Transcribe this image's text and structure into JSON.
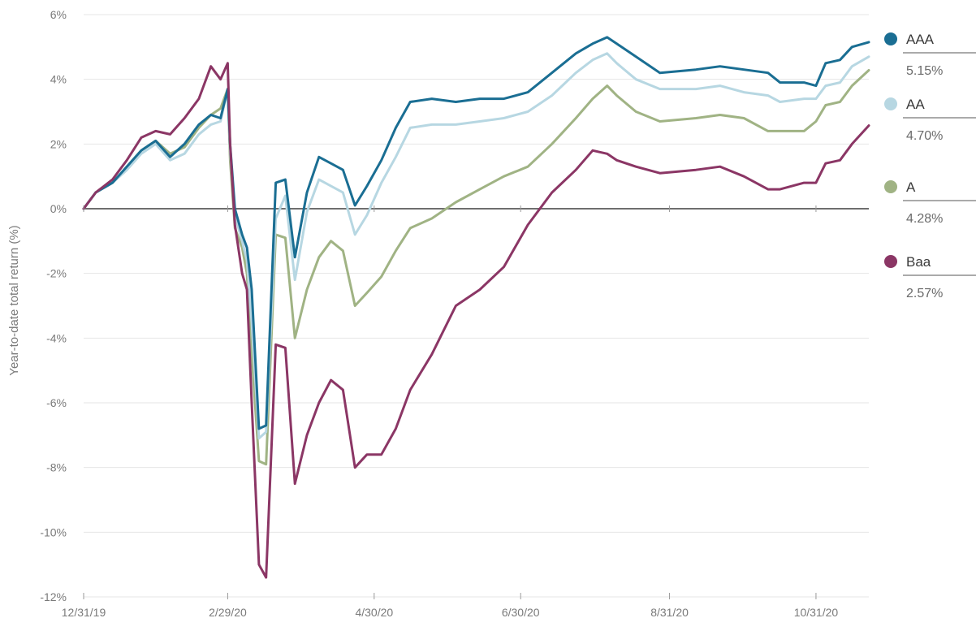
{
  "chart_data": {
    "type": "line",
    "ylabel": "Year-to-date total return (%)",
    "ylim": [
      -12,
      6
    ],
    "grid": true,
    "legend_position": "right",
    "y_ticks": [
      6,
      4,
      2,
      0,
      -2,
      -4,
      -6,
      -8,
      -10,
      -12
    ],
    "y_tick_labels": [
      "6%",
      "4%",
      "2%",
      "0%",
      "-2%",
      "-4%",
      "-6%",
      "-8%",
      "-10%",
      "-12%"
    ],
    "x_ticks": [
      "12/31/19",
      "2/29/20",
      "4/30/20",
      "6/30/20",
      "8/31/20",
      "10/31/20"
    ],
    "x_tick_index": [
      0,
      60,
      121,
      182,
      244,
      305
    ],
    "x_range": [
      0,
      327
    ],
    "series": [
      {
        "name": "AAA",
        "legend_value": "5.15%",
        "color": "#1a6e93",
        "points": [
          [
            0,
            0
          ],
          [
            5,
            0.5
          ],
          [
            12,
            0.8
          ],
          [
            18,
            1.3
          ],
          [
            24,
            1.8
          ],
          [
            30,
            2.1
          ],
          [
            36,
            1.6
          ],
          [
            42,
            2.0
          ],
          [
            48,
            2.6
          ],
          [
            53,
            2.9
          ],
          [
            57,
            2.8
          ],
          [
            60,
            3.7
          ],
          [
            61,
            2.0
          ],
          [
            63,
            0
          ],
          [
            66,
            -0.8
          ],
          [
            68,
            -1.2
          ],
          [
            70,
            -2.5
          ],
          [
            73,
            -6.8
          ],
          [
            76,
            -6.7
          ],
          [
            80,
            0.8
          ],
          [
            84,
            0.9
          ],
          [
            88,
            -1.5
          ],
          [
            93,
            0.5
          ],
          [
            98,
            1.6
          ],
          [
            103,
            1.4
          ],
          [
            108,
            1.2
          ],
          [
            113,
            0.1
          ],
          [
            118,
            0.7
          ],
          [
            124,
            1.5
          ],
          [
            130,
            2.5
          ],
          [
            136,
            3.3
          ],
          [
            145,
            3.4
          ],
          [
            155,
            3.3
          ],
          [
            165,
            3.4
          ],
          [
            175,
            3.4
          ],
          [
            185,
            3.6
          ],
          [
            195,
            4.2
          ],
          [
            205,
            4.8
          ],
          [
            212,
            5.1
          ],
          [
            218,
            5.3
          ],
          [
            222,
            5.1
          ],
          [
            230,
            4.7
          ],
          [
            240,
            4.2
          ],
          [
            255,
            4.3
          ],
          [
            265,
            4.4
          ],
          [
            275,
            4.3
          ],
          [
            285,
            4.2
          ],
          [
            290,
            3.9
          ],
          [
            300,
            3.9
          ],
          [
            305,
            3.8
          ],
          [
            309,
            4.5
          ],
          [
            315,
            4.6
          ],
          [
            320,
            5.0
          ],
          [
            327,
            5.15
          ]
        ]
      },
      {
        "name": "AA",
        "legend_value": "4.70%",
        "color": "#b7d7e2",
        "points": [
          [
            0,
            0
          ],
          [
            5,
            0.5
          ],
          [
            12,
            0.8
          ],
          [
            18,
            1.2
          ],
          [
            24,
            1.7
          ],
          [
            30,
            2.0
          ],
          [
            36,
            1.5
          ],
          [
            42,
            1.7
          ],
          [
            48,
            2.3
          ],
          [
            53,
            2.6
          ],
          [
            57,
            2.7
          ],
          [
            60,
            3.7
          ],
          [
            61,
            1.8
          ],
          [
            63,
            -0.2
          ],
          [
            66,
            -1.0
          ],
          [
            68,
            -1.6
          ],
          [
            70,
            -3.5
          ],
          [
            73,
            -7.1
          ],
          [
            76,
            -6.9
          ],
          [
            80,
            -0.3
          ],
          [
            84,
            0.4
          ],
          [
            88,
            -2.2
          ],
          [
            93,
            -0.1
          ],
          [
            98,
            0.9
          ],
          [
            103,
            0.7
          ],
          [
            108,
            0.5
          ],
          [
            113,
            -0.8
          ],
          [
            118,
            -0.2
          ],
          [
            124,
            0.8
          ],
          [
            130,
            1.6
          ],
          [
            136,
            2.5
          ],
          [
            145,
            2.6
          ],
          [
            155,
            2.6
          ],
          [
            165,
            2.7
          ],
          [
            175,
            2.8
          ],
          [
            185,
            3.0
          ],
          [
            195,
            3.5
          ],
          [
            205,
            4.2
          ],
          [
            212,
            4.6
          ],
          [
            218,
            4.8
          ],
          [
            222,
            4.5
          ],
          [
            230,
            4.0
          ],
          [
            240,
            3.7
          ],
          [
            255,
            3.7
          ],
          [
            265,
            3.8
          ],
          [
            275,
            3.6
          ],
          [
            285,
            3.5
          ],
          [
            290,
            3.3
          ],
          [
            300,
            3.4
          ],
          [
            305,
            3.4
          ],
          [
            309,
            3.8
          ],
          [
            315,
            3.9
          ],
          [
            320,
            4.4
          ],
          [
            327,
            4.7
          ]
        ]
      },
      {
        "name": "A",
        "legend_value": "4.28%",
        "color": "#a0b384",
        "points": [
          [
            0,
            0
          ],
          [
            5,
            0.5
          ],
          [
            12,
            0.8
          ],
          [
            18,
            1.3
          ],
          [
            24,
            1.8
          ],
          [
            30,
            2.1
          ],
          [
            36,
            1.7
          ],
          [
            42,
            1.9
          ],
          [
            48,
            2.5
          ],
          [
            53,
            2.9
          ],
          [
            57,
            3.1
          ],
          [
            60,
            3.7
          ],
          [
            61,
            1.5
          ],
          [
            63,
            -0.6
          ],
          [
            66,
            -1.2
          ],
          [
            68,
            -2.0
          ],
          [
            70,
            -4.5
          ],
          [
            73,
            -7.8
          ],
          [
            76,
            -7.9
          ],
          [
            80,
            -0.8
          ],
          [
            84,
            -0.9
          ],
          [
            88,
            -4.0
          ],
          [
            93,
            -2.5
          ],
          [
            98,
            -1.5
          ],
          [
            103,
            -1.0
          ],
          [
            108,
            -1.3
          ],
          [
            113,
            -3.0
          ],
          [
            118,
            -2.6
          ],
          [
            124,
            -2.1
          ],
          [
            130,
            -1.3
          ],
          [
            136,
            -0.6
          ],
          [
            145,
            -0.3
          ],
          [
            155,
            0.2
          ],
          [
            165,
            0.6
          ],
          [
            175,
            1.0
          ],
          [
            185,
            1.3
          ],
          [
            195,
            2.0
          ],
          [
            205,
            2.8
          ],
          [
            212,
            3.4
          ],
          [
            218,
            3.8
          ],
          [
            222,
            3.5
          ],
          [
            230,
            3.0
          ],
          [
            240,
            2.7
          ],
          [
            255,
            2.8
          ],
          [
            265,
            2.9
          ],
          [
            275,
            2.8
          ],
          [
            285,
            2.4
          ],
          [
            290,
            2.4
          ],
          [
            300,
            2.4
          ],
          [
            305,
            2.7
          ],
          [
            309,
            3.2
          ],
          [
            315,
            3.3
          ],
          [
            320,
            3.8
          ],
          [
            327,
            4.28
          ]
        ]
      },
      {
        "name": "Baa",
        "legend_value": "2.57%",
        "color": "#8b3665",
        "points": [
          [
            0,
            0
          ],
          [
            5,
            0.5
          ],
          [
            12,
            0.9
          ],
          [
            18,
            1.5
          ],
          [
            24,
            2.2
          ],
          [
            30,
            2.4
          ],
          [
            36,
            2.3
          ],
          [
            42,
            2.8
          ],
          [
            48,
            3.4
          ],
          [
            53,
            4.4
          ],
          [
            57,
            4.0
          ],
          [
            60,
            4.5
          ],
          [
            61,
            2.0
          ],
          [
            63,
            -0.5
          ],
          [
            66,
            -2.0
          ],
          [
            68,
            -2.5
          ],
          [
            70,
            -6.0
          ],
          [
            73,
            -11.0
          ],
          [
            76,
            -11.4
          ],
          [
            80,
            -4.2
          ],
          [
            84,
            -4.3
          ],
          [
            88,
            -8.5
          ],
          [
            93,
            -7.0
          ],
          [
            98,
            -6.0
          ],
          [
            103,
            -5.3
          ],
          [
            108,
            -5.6
          ],
          [
            113,
            -8.0
          ],
          [
            118,
            -7.6
          ],
          [
            124,
            -7.6
          ],
          [
            130,
            -6.8
          ],
          [
            136,
            -5.6
          ],
          [
            145,
            -4.5
          ],
          [
            155,
            -3.0
          ],
          [
            165,
            -2.5
          ],
          [
            175,
            -1.8
          ],
          [
            185,
            -0.5
          ],
          [
            195,
            0.5
          ],
          [
            205,
            1.2
          ],
          [
            212,
            1.8
          ],
          [
            218,
            1.7
          ],
          [
            222,
            1.5
          ],
          [
            230,
            1.3
          ],
          [
            240,
            1.1
          ],
          [
            255,
            1.2
          ],
          [
            265,
            1.3
          ],
          [
            275,
            1.0
          ],
          [
            285,
            0.6
          ],
          [
            290,
            0.6
          ],
          [
            300,
            0.8
          ],
          [
            305,
            0.8
          ],
          [
            309,
            1.4
          ],
          [
            315,
            1.5
          ],
          [
            320,
            2.0
          ],
          [
            327,
            2.57
          ]
        ]
      }
    ]
  }
}
